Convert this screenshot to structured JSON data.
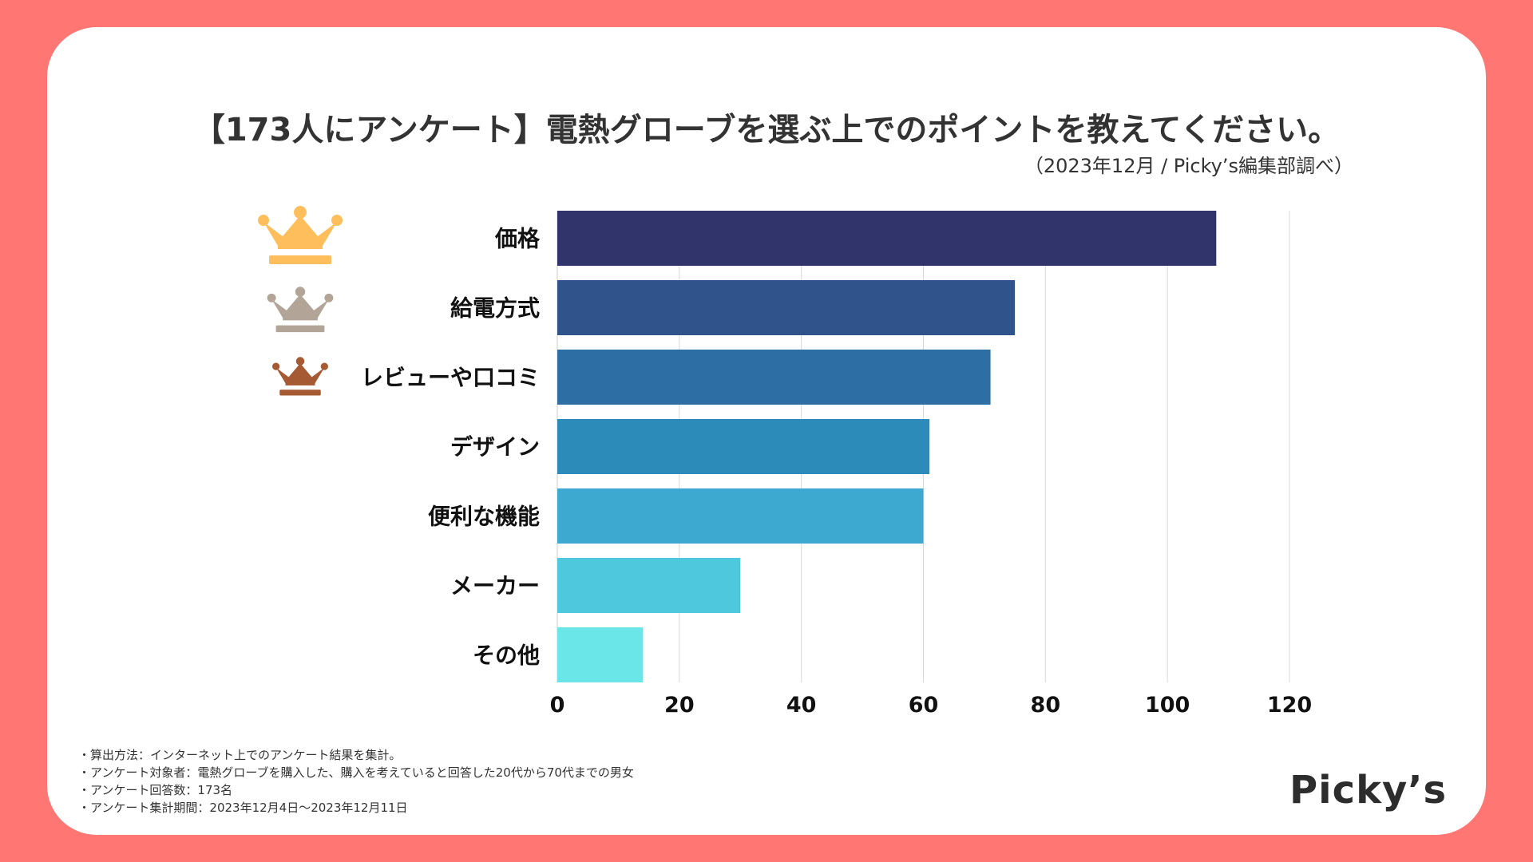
{
  "header": {
    "title": "【173人にアンケート】電熱グローブを選ぶ上でのポイントを教えてください。",
    "subtitle": "（2023年12月 / Picky’s編集部調べ）"
  },
  "chart_data": {
    "type": "bar",
    "orientation": "horizontal",
    "categories": [
      "価格",
      "給電方式",
      "レビューや口コミ",
      "デザイン",
      "便利な機能",
      "メーカー",
      "その他"
    ],
    "values": [
      108,
      75,
      71,
      61,
      60,
      30,
      14
    ],
    "colors": [
      "#31336b",
      "#30538c",
      "#2d6fa5",
      "#2d8bba",
      "#3ea9d0",
      "#4ec8dd",
      "#6ae5e8"
    ],
    "xlim": [
      0,
      120
    ],
    "xticks": [
      0,
      20,
      40,
      60,
      80,
      100,
      120
    ],
    "grid": true,
    "rank_icons": [
      {
        "rank": 1,
        "icon": "gold-crown-icon",
        "color": "#ffbe5c"
      },
      {
        "rank": 2,
        "icon": "silver-crown-icon",
        "color": "#b2a597"
      },
      {
        "rank": 3,
        "icon": "bronze-crown-icon",
        "color": "#a55a33"
      }
    ]
  },
  "notes": [
    "・算出方法：インターネット上でのアンケート結果を集計。",
    "・アンケート対象者：電熱グローブを購入した、購入を考えていると回答した20代から70代までの男女",
    "・アンケート回答数：173名",
    "・アンケート集計期間：2023年12月4日〜2023年12月11日"
  ],
  "brand": {
    "logo_text": "Picky’s"
  },
  "colors": {
    "background": "#ff7672",
    "card": "#ffffff",
    "text": "#333333"
  }
}
